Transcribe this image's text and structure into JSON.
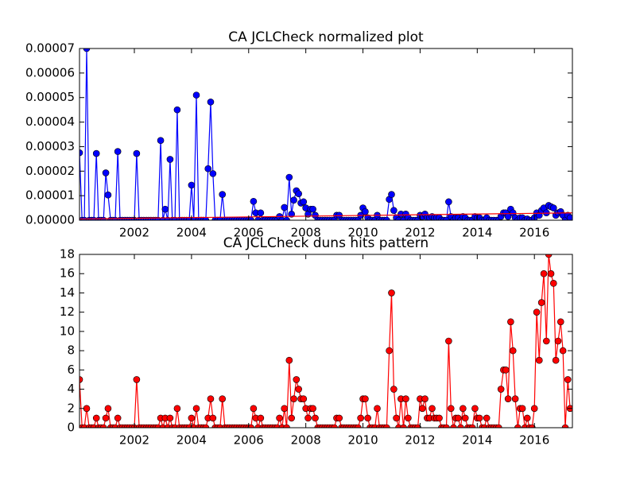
{
  "chart_data": [
    {
      "type": "line",
      "title": "CA JCLCheck normalized plot",
      "xlim": [
        2000.08,
        2017.33
      ],
      "xticks": [
        2002,
        2004,
        2006,
        2008,
        2010,
        2012,
        2014,
        2016
      ],
      "ylim": [
        0,
        7e-05
      ],
      "yticks": [
        {
          "value": 0,
          "label": "0.00000"
        },
        1e-05,
        2e-05,
        3e-05,
        4e-05,
        5e-05,
        6e-05,
        7e-05
      ],
      "series": [
        {
          "color": "#0000ff",
          "markers": true,
          "x": [
            2000.08,
            2000.17,
            2000.25,
            2000.33,
            2000.42,
            2000.5,
            2000.58,
            2000.67,
            2000.75,
            2000.83,
            2000.92,
            2001,
            2001.08,
            2001.17,
            2001.25,
            2001.33,
            2001.42,
            2001.5,
            2001.58,
            2001.67,
            2001.75,
            2001.83,
            2001.92,
            2002,
            2002.08,
            2002.17,
            2002.25,
            2002.33,
            2002.42,
            2002.5,
            2002.58,
            2002.67,
            2002.75,
            2002.83,
            2002.92,
            2003,
            2003.08,
            2003.17,
            2003.25,
            2003.33,
            2003.42,
            2003.5,
            2003.58,
            2003.67,
            2003.75,
            2003.83,
            2003.92,
            2004,
            2004.08,
            2004.17,
            2004.25,
            2004.33,
            2004.42,
            2004.5,
            2004.58,
            2004.67,
            2004.75,
            2004.83,
            2004.92,
            2005,
            2005.08,
            2005.17,
            2005.25,
            2005.33,
            2005.42,
            2005.5,
            2005.58,
            2005.67,
            2005.75,
            2005.83,
            2005.92,
            2006,
            2006.08,
            2006.17,
            2006.25,
            2006.33,
            2006.42,
            2006.5,
            2006.58,
            2006.67,
            2006.75,
            2006.83,
            2006.92,
            2007,
            2007.08,
            2007.17,
            2007.25,
            2007.33,
            2007.42,
            2007.5,
            2007.58,
            2007.67,
            2007.75,
            2007.83,
            2007.92,
            2008,
            2008.08,
            2008.17,
            2008.25,
            2008.33,
            2008.42,
            2008.5,
            2008.58,
            2008.67,
            2008.75,
            2008.83,
            2008.92,
            2009,
            2009.08,
            2009.17,
            2009.25,
            2009.33,
            2009.42,
            2009.5,
            2009.58,
            2009.67,
            2009.75,
            2009.83,
            2009.92,
            2010,
            2010.08,
            2010.17,
            2010.25,
            2010.33,
            2010.42,
            2010.5,
            2010.58,
            2010.67,
            2010.75,
            2010.83,
            2010.92,
            2011,
            2011.08,
            2011.17,
            2011.25,
            2011.33,
            2011.42,
            2011.5,
            2011.58,
            2011.67,
            2011.75,
            2011.83,
            2011.92,
            2012,
            2012.08,
            2012.17,
            2012.25,
            2012.33,
            2012.42,
            2012.5,
            2012.58,
            2012.67,
            2012.75,
            2012.83,
            2012.92,
            2013,
            2013.08,
            2013.17,
            2013.25,
            2013.33,
            2013.42,
            2013.5,
            2013.58,
            2013.67,
            2013.75,
            2013.83,
            2013.92,
            2014,
            2014.08,
            2014.17,
            2014.25,
            2014.33,
            2014.42,
            2014.5,
            2014.58,
            2014.67,
            2014.75,
            2014.83,
            2014.92,
            2015,
            2015.08,
            2015.17,
            2015.25,
            2015.33,
            2015.42,
            2015.5,
            2015.58,
            2015.67,
            2015.75,
            2015.83,
            2015.92,
            2016,
            2016.08,
            2016.17,
            2016.25,
            2016.33,
            2016.42,
            2016.5,
            2016.58,
            2016.67,
            2016.75,
            2016.83,
            2016.92,
            2017,
            2017.08,
            2017.17,
            2017.25
          ],
          "values": [
            2.75e-05,
            0,
            0,
            7e-05,
            0,
            0,
            0,
            2.72e-05,
            0,
            0,
            0,
            1.93e-05,
            1.03e-05,
            0,
            0,
            0,
            2.8e-05,
            0,
            0,
            0,
            0,
            0,
            0,
            0,
            2.72e-05,
            0,
            0,
            0,
            0,
            0,
            0,
            0,
            0,
            0,
            3.25e-05,
            0,
            4.5e-06,
            0,
            2.48e-05,
            0,
            0,
            4.5e-05,
            0,
            0,
            0,
            0,
            0,
            1.43e-05,
            0,
            5.1e-05,
            0,
            0,
            0,
            0,
            2.1e-05,
            4.82e-05,
            1.9e-05,
            0,
            0,
            0,
            1.05e-05,
            0,
            0,
            0,
            0,
            0,
            0,
            0,
            0,
            0,
            0,
            0,
            0,
            7.7e-06,
            3e-06,
            0,
            3e-06,
            0,
            0,
            0,
            0,
            0,
            0,
            0,
            1.5e-06,
            0,
            5.2e-06,
            0,
            1.75e-05,
            2.5e-06,
            8.2e-06,
            1.2e-05,
            1.08e-05,
            7e-06,
            7.5e-06,
            5e-06,
            2.5e-06,
            4.5e-06,
            4.5e-06,
            2e-06,
            0,
            0,
            0,
            0,
            0,
            0,
            0,
            0,
            2e-06,
            2e-06,
            0,
            0,
            0,
            0,
            0,
            0,
            0,
            0,
            2e-06,
            5e-06,
            3.5e-06,
            1e-06,
            0,
            0,
            0,
            2e-06,
            0,
            0,
            0,
            0,
            8.5e-06,
            1.05e-05,
            4e-06,
            1e-06,
            0,
            2.5e-06,
            0,
            2.5e-06,
            1e-06,
            0,
            0,
            0,
            0,
            2e-06,
            1.5e-06,
            2.5e-06,
            1e-06,
            1e-06,
            1.5e-06,
            1e-06,
            1e-06,
            1e-06,
            0,
            0,
            0,
            7.5e-06,
            1.5e-06,
            0,
            1e-06,
            1e-06,
            0,
            1.5e-06,
            1e-06,
            0,
            0,
            0,
            1.5e-06,
            1e-06,
            1e-06,
            0,
            0,
            1e-06,
            0,
            0,
            0,
            0,
            0,
            1.5e-06,
            3e-06,
            3e-06,
            1.5e-06,
            4.5e-06,
            3e-06,
            1e-06,
            0,
            1e-06,
            1e-06,
            0,
            5e-07,
            0,
            0,
            1e-06,
            3e-06,
            2e-06,
            4e-06,
            5e-06,
            3e-06,
            6e-06,
            5.5e-06,
            5e-06,
            2e-06,
            3e-06,
            3.5e-06,
            2e-06,
            0,
            2e-06,
            1e-06
          ]
        },
        {
          "color": "#ff0000",
          "markers": false,
          "x": [
            2000.08,
            2017.33
          ],
          "values": [
            5e-07,
            3e-06
          ]
        }
      ]
    },
    {
      "type": "line",
      "title": "CA JCLCheck duns hits pattern",
      "xlim": [
        2000.08,
        2017.33
      ],
      "xticks": [
        2002,
        2004,
        2006,
        2008,
        2010,
        2012,
        2014,
        2016
      ],
      "ylim": [
        0,
        18
      ],
      "yticks": [
        0,
        2,
        4,
        6,
        8,
        10,
        12,
        14,
        16,
        18
      ],
      "series": [
        {
          "color": "#ff0000",
          "markers": true,
          "x": [
            2000.08,
            2000.17,
            2000.25,
            2000.33,
            2000.42,
            2000.5,
            2000.58,
            2000.67,
            2000.75,
            2000.83,
            2000.92,
            2001,
            2001.08,
            2001.17,
            2001.25,
            2001.33,
            2001.42,
            2001.5,
            2001.58,
            2001.67,
            2001.75,
            2001.83,
            2001.92,
            2002,
            2002.08,
            2002.17,
            2002.25,
            2002.33,
            2002.42,
            2002.5,
            2002.58,
            2002.67,
            2002.75,
            2002.83,
            2002.92,
            2003,
            2003.08,
            2003.17,
            2003.25,
            2003.33,
            2003.42,
            2003.5,
            2003.58,
            2003.67,
            2003.75,
            2003.83,
            2003.92,
            2004,
            2004.08,
            2004.17,
            2004.25,
            2004.33,
            2004.42,
            2004.5,
            2004.58,
            2004.67,
            2004.75,
            2004.83,
            2004.92,
            2005,
            2005.08,
            2005.17,
            2005.25,
            2005.33,
            2005.42,
            2005.5,
            2005.58,
            2005.67,
            2005.75,
            2005.83,
            2005.92,
            2006,
            2006.08,
            2006.17,
            2006.25,
            2006.33,
            2006.42,
            2006.5,
            2006.58,
            2006.67,
            2006.75,
            2006.83,
            2006.92,
            2007,
            2007.08,
            2007.17,
            2007.25,
            2007.33,
            2007.42,
            2007.5,
            2007.58,
            2007.67,
            2007.75,
            2007.83,
            2007.92,
            2008,
            2008.08,
            2008.17,
            2008.25,
            2008.33,
            2008.42,
            2008.5,
            2008.58,
            2008.67,
            2008.75,
            2008.83,
            2008.92,
            2009,
            2009.08,
            2009.17,
            2009.25,
            2009.33,
            2009.42,
            2009.5,
            2009.58,
            2009.67,
            2009.75,
            2009.83,
            2009.92,
            2010,
            2010.08,
            2010.17,
            2010.25,
            2010.33,
            2010.42,
            2010.5,
            2010.58,
            2010.67,
            2010.75,
            2010.83,
            2010.92,
            2011,
            2011.08,
            2011.17,
            2011.25,
            2011.33,
            2011.42,
            2011.5,
            2011.58,
            2011.67,
            2011.75,
            2011.83,
            2011.92,
            2012,
            2012.08,
            2012.17,
            2012.25,
            2012.33,
            2012.42,
            2012.5,
            2012.58,
            2012.67,
            2012.75,
            2012.83,
            2012.92,
            2013,
            2013.08,
            2013.17,
            2013.25,
            2013.33,
            2013.42,
            2013.5,
            2013.58,
            2013.67,
            2013.75,
            2013.83,
            2013.92,
            2014,
            2014.08,
            2014.17,
            2014.25,
            2014.33,
            2014.42,
            2014.5,
            2014.58,
            2014.67,
            2014.75,
            2014.83,
            2014.92,
            2015,
            2015.08,
            2015.17,
            2015.25,
            2015.33,
            2015.42,
            2015.5,
            2015.58,
            2015.67,
            2015.75,
            2015.83,
            2015.92,
            2016,
            2016.08,
            2016.17,
            2016.25,
            2016.33,
            2016.42,
            2016.5,
            2016.58,
            2016.67,
            2016.75,
            2016.83,
            2016.92,
            2017,
            2017.08,
            2017.17,
            2017.25
          ],
          "values": [
            5,
            0,
            0,
            2,
            0,
            0,
            0,
            1,
            0,
            0,
            0,
            1,
            2,
            0,
            0,
            0,
            1,
            0,
            0,
            0,
            0,
            0,
            0,
            0,
            5,
            0,
            0,
            0,
            0,
            0,
            0,
            0,
            0,
            0,
            1,
            0,
            1,
            0,
            1,
            0,
            0,
            2,
            0,
            0,
            0,
            0,
            0,
            1,
            0,
            2,
            0,
            0,
            0,
            0,
            1,
            3,
            1,
            0,
            0,
            0,
            3,
            0,
            0,
            0,
            0,
            0,
            0,
            0,
            0,
            0,
            0,
            0,
            0,
            2,
            1,
            0,
            1,
            0,
            0,
            0,
            0,
            0,
            0,
            0,
            1,
            0,
            2,
            0,
            7,
            1,
            3,
            5,
            4,
            3,
            3,
            2,
            1,
            2,
            2,
            1,
            0,
            0,
            0,
            0,
            0,
            0,
            0,
            0,
            1,
            1,
            0,
            0,
            0,
            0,
            0,
            0,
            0,
            0,
            1,
            3,
            3,
            1,
            0,
            0,
            0,
            2,
            0,
            0,
            0,
            0,
            8,
            14,
            4,
            1,
            0,
            3,
            0,
            3,
            1,
            0,
            0,
            0,
            0,
            3,
            2,
            3,
            1,
            1,
            2,
            1,
            1,
            1,
            0,
            0,
            0,
            9,
            2,
            0,
            1,
            1,
            0,
            2,
            1,
            0,
            0,
            0,
            2,
            1,
            1,
            0,
            0,
            1,
            0,
            0,
            0,
            0,
            0,
            4,
            6,
            6,
            3,
            11,
            8,
            3,
            0,
            2,
            2,
            0,
            1,
            0,
            0,
            2,
            12,
            7,
            13,
            16,
            9,
            18,
            16,
            15,
            7,
            9,
            11,
            8,
            0,
            5,
            2
          ]
        }
      ]
    }
  ]
}
